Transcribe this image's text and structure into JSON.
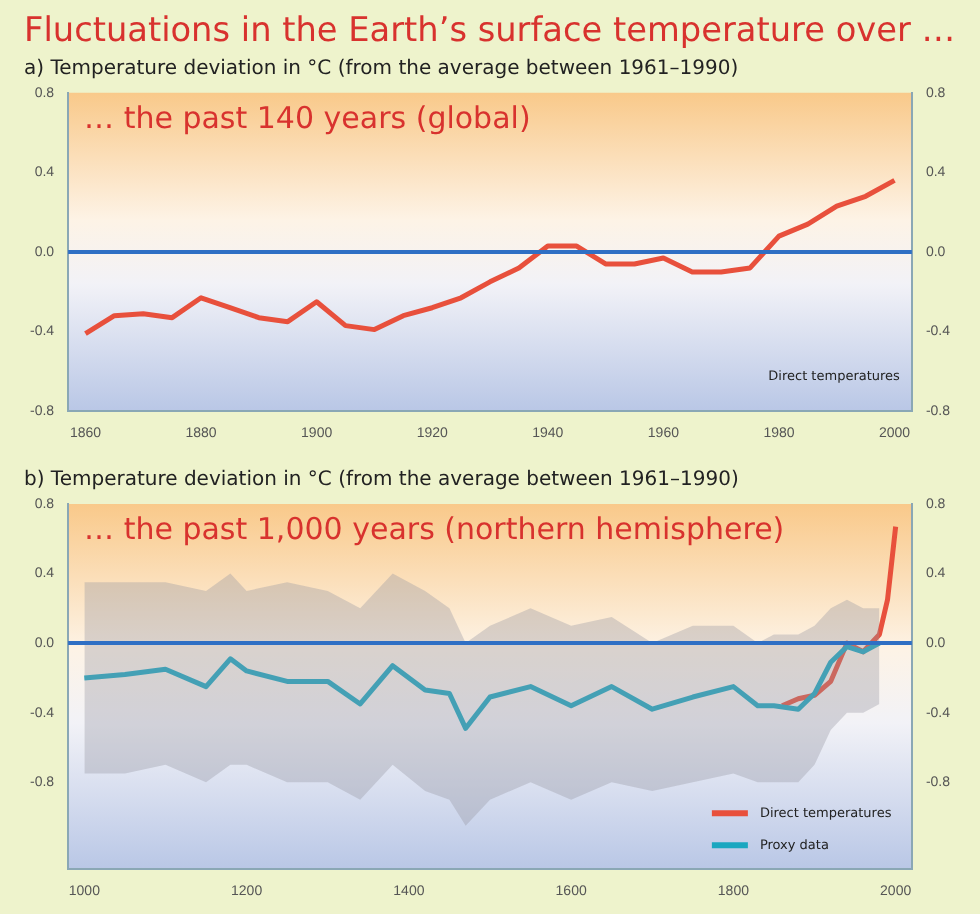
{
  "chart_data": [
    {
      "type": "line",
      "title": "Fluctuations in the Earth’s surface temperature over …",
      "subtitle": "a) Temperature deviation in °C (from the average between 1961–1990)",
      "annotations": [
        "… the past 140 years (global)",
        "Direct temperatures"
      ],
      "xlim": [
        1857,
        2003
      ],
      "xticks": [
        1860,
        1880,
        1900,
        1920,
        1940,
        1960,
        1980,
        2000
      ],
      "ylim": [
        -0.8,
        0.8
      ],
      "yticks": [
        -0.8,
        -0.4,
        {
          "value": 0,
          "label": "0.0"
        },
        0.4,
        0.8
      ],
      "y2lim": [
        -0.8,
        0.8
      ],
      "y2ticks": [
        -0.8,
        -0.4,
        {
          "value": 0,
          "label": "0.0"
        },
        0.4,
        0.8
      ],
      "ref_lines": [
        {
          "axis": "y",
          "value": 0,
          "color": "#2f6fc4"
        }
      ],
      "legend": false,
      "marker": "none",
      "line_style": "solid",
      "series": [
        {
          "color": "#e8503c",
          "x": [
            1860,
            1865,
            1870,
            1875,
            1880,
            1885,
            1890,
            1895,
            1900,
            1905,
            1910,
            1915,
            1920,
            1925,
            1930,
            1935,
            1940,
            1945,
            1950,
            1955,
            1960,
            1965,
            1970,
            1975,
            1980,
            1985,
            1990,
            1995,
            2000
          ],
          "values": [
            -0.41,
            -0.32,
            -0.31,
            -0.33,
            -0.23,
            -0.28,
            -0.33,
            -0.35,
            -0.25,
            -0.37,
            -0.39,
            -0.32,
            -0.28,
            -0.23,
            -0.15,
            -0.08,
            0.03,
            0.03,
            -0.06,
            -0.06,
            -0.03,
            -0.1,
            -0.1,
            -0.08,
            0.08,
            0.14,
            0.23,
            0.28,
            0.36
          ]
        }
      ]
    },
    {
      "type": "line",
      "title": "b) Temperature deviation in °C (from the average between 1961–1990)",
      "annotations": [
        "… the past 1,000 years (northern hemisphere)"
      ],
      "xlim": [
        980,
        2020
      ],
      "xticks": [
        1000,
        1200,
        1400,
        1600,
        1800,
        2000
      ],
      "ylim": [
        -1.3,
        0.8
      ],
      "yticks": [
        -0.8,
        -0.4,
        {
          "value": 0,
          "label": "0.0"
        },
        0.4,
        0.8
      ],
      "y2lim": [
        -1.3,
        0.8
      ],
      "y2ticks": [
        -0.8,
        -0.4,
        {
          "value": 0,
          "label": "0.0"
        },
        0.4,
        0.8
      ],
      "ref_lines": [
        {
          "axis": "y",
          "value": 0,
          "color": "#2f6fc4"
        }
      ],
      "legend": "bottom right",
      "marker": "none",
      "line_style": "solid",
      "series": [
        {
          "name": "Proxy data",
          "color": "#1aa7c0",
          "x": [
            1000,
            1050,
            1100,
            1150,
            1180,
            1200,
            1250,
            1300,
            1340,
            1380,
            1420,
            1450,
            1470,
            1500,
            1550,
            1600,
            1650,
            1700,
            1750,
            1800,
            1830,
            1850,
            1880,
            1900,
            1920,
            1940,
            1960,
            1980
          ],
          "values": [
            -0.2,
            -0.18,
            -0.15,
            -0.25,
            -0.09,
            -0.16,
            -0.22,
            -0.22,
            -0.35,
            -0.13,
            -0.27,
            -0.29,
            -0.49,
            -0.31,
            -0.25,
            -0.36,
            -0.25,
            -0.38,
            -0.31,
            -0.25,
            -0.36,
            -0.36,
            -0.38,
            -0.29,
            -0.11,
            -0.02,
            -0.05,
            0.0
          ],
          "upper": [
            0.35,
            0.35,
            0.35,
            0.3,
            0.4,
            0.3,
            0.35,
            0.3,
            0.2,
            0.4,
            0.3,
            0.2,
            0.0,
            0.1,
            0.2,
            0.1,
            0.15,
            0.0,
            0.1,
            0.1,
            0.0,
            0.05,
            0.05,
            0.1,
            0.2,
            0.25,
            0.2,
            0.2
          ],
          "lower": [
            -0.75,
            -0.75,
            -0.7,
            -0.8,
            -0.7,
            -0.7,
            -0.8,
            -0.8,
            -0.9,
            -0.7,
            -0.85,
            -0.9,
            -1.05,
            -0.9,
            -0.8,
            -0.9,
            -0.8,
            -0.85,
            -0.8,
            -0.75,
            -0.8,
            -0.8,
            -0.8,
            -0.7,
            -0.5,
            -0.4,
            -0.4,
            -0.35
          ]
        },
        {
          "name": "Direct temperatures",
          "color": "#e8503c",
          "x": [
            1860,
            1880,
            1900,
            1920,
            1940,
            1960,
            1980,
            1990,
            2000
          ],
          "values": [
            -0.36,
            -0.32,
            -0.3,
            -0.22,
            0.0,
            -0.05,
            0.05,
            0.25,
            0.67
          ]
        }
      ]
    }
  ]
}
